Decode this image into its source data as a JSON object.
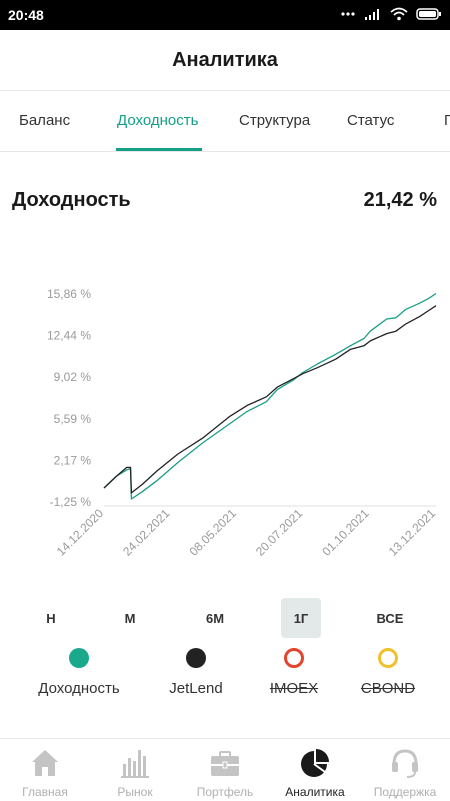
{
  "status_bar": {
    "time": "20:48"
  },
  "header": {
    "title": "Аналитика"
  },
  "tabs": [
    {
      "label": "Баланс"
    },
    {
      "label": "Доходность"
    },
    {
      "label": "Структура"
    },
    {
      "label": "Статус"
    },
    {
      "label": "П"
    }
  ],
  "metric": {
    "title": "Доходность",
    "value": "21,42 %"
  },
  "chart_data": {
    "type": "line",
    "y_ticks": [
      "15,86 %",
      "12,44 %",
      "9,02 %",
      "5,59 %",
      "2,17 %",
      "-1,25 %"
    ],
    "x_ticks": [
      "14.12.2020",
      "24.02.2021",
      "08.05.2021",
      "20.07.2021",
      "01.10.2021",
      "13.12.2021"
    ],
    "ylim": [
      -1.25,
      15.86
    ],
    "grid": false,
    "series": [
      {
        "name": "Доходность",
        "color": "#1a9e87",
        "x": [
          "2020-12-14",
          "2020-12-28",
          "2021-01-08",
          "2021-01-12",
          "2021-01-13",
          "2021-01-25",
          "2021-02-10",
          "2021-03-05",
          "2021-04-01",
          "2021-05-01",
          "2021-05-20",
          "2021-06-10",
          "2021-06-22",
          "2021-07-10",
          "2021-07-20",
          "2021-08-05",
          "2021-08-25",
          "2021-09-10",
          "2021-09-25",
          "2021-10-02",
          "2021-10-20",
          "2021-10-30",
          "2021-11-10",
          "2021-11-25",
          "2021-12-05",
          "2021-12-13"
        ],
        "values": [
          -0.1,
          0.9,
          1.4,
          1.5,
          -1.0,
          -0.4,
          0.5,
          2.0,
          3.6,
          5.2,
          6.2,
          7.0,
          8.0,
          8.8,
          9.4,
          10.1,
          10.9,
          11.6,
          12.2,
          12.8,
          13.8,
          13.9,
          14.6,
          15.1,
          15.5,
          15.9
        ]
      },
      {
        "name": "JetLend",
        "color": "#222222",
        "x": [
          "2020-12-14",
          "2020-12-28",
          "2021-01-08",
          "2021-01-12",
          "2021-01-13",
          "2021-01-25",
          "2021-02-10",
          "2021-03-05",
          "2021-04-01",
          "2021-05-01",
          "2021-05-20",
          "2021-06-10",
          "2021-06-22",
          "2021-07-10",
          "2021-07-20",
          "2021-08-05",
          "2021-08-25",
          "2021-09-10",
          "2021-09-25",
          "2021-10-02",
          "2021-10-20",
          "2021-10-30",
          "2021-11-10",
          "2021-11-25",
          "2021-12-05",
          "2021-12-13"
        ],
        "values": [
          -0.1,
          0.9,
          1.6,
          1.6,
          -0.5,
          0.2,
          1.3,
          2.7,
          4.0,
          5.8,
          6.7,
          7.4,
          8.2,
          8.9,
          9.3,
          9.8,
          10.5,
          11.3,
          11.6,
          12.0,
          12.6,
          12.8,
          13.4,
          14.0,
          14.5,
          14.9
        ]
      }
    ]
  },
  "periods": [
    {
      "label": "Н"
    },
    {
      "label": "М"
    },
    {
      "label": "6М"
    },
    {
      "label": "1Г"
    },
    {
      "label": "ВСЕ"
    }
  ],
  "legend": [
    {
      "label": "Доходность",
      "color": "#1aa98c",
      "style": "filled"
    },
    {
      "label": "JetLend",
      "color": "#222222",
      "style": "filled"
    },
    {
      "label": "IMOEX",
      "color": "#e2452b",
      "style": "outline"
    },
    {
      "label": "CBOND",
      "color": "#f2c12a",
      "style": "outline"
    }
  ],
  "bottom_nav": [
    {
      "label": "Главная",
      "icon": "home-icon"
    },
    {
      "label": "Рынок",
      "icon": "market-bars-icon"
    },
    {
      "label": "Портфель",
      "icon": "briefcase-icon"
    },
    {
      "label": "Аналитика",
      "icon": "pie-chart-icon"
    },
    {
      "label": "Поддержка",
      "icon": "headset-icon"
    }
  ]
}
